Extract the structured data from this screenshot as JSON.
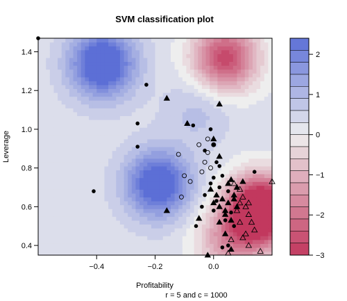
{
  "chart_data": {
    "type": "scatter",
    "title": "SVM classification plot",
    "xlabel": "Profitability",
    "ylabel": "Leverage",
    "subtitle": "r = 5  and c = 1000",
    "xlim": [
      -0.6,
      0.2
    ],
    "ylim": [
      0.35,
      1.47
    ],
    "x_ticks": [
      -0.4,
      -0.2,
      0.0
    ],
    "x_tick_labels": [
      "−0.4",
      "−0.2",
      "0.0"
    ],
    "y_ticks": [
      0.4,
      0.6,
      0.8,
      1.0,
      1.2,
      1.4
    ],
    "y_tick_labels": [
      "0.4",
      "0.6",
      "0.8",
      "1.0",
      "1.2",
      "1.4"
    ],
    "colorbar": {
      "min": -3,
      "max": 2.4,
      "ticks": [
        2,
        1,
        0,
        -1,
        -2,
        -3
      ],
      "tick_labels": [
        "2",
        "1",
        "0",
        "−1",
        "−2",
        "−3"
      ],
      "high_color": "#5c6fd6",
      "mid_color": "#eeeeee",
      "low_color": "#c2385e"
    },
    "decision_surface": {
      "bias": 0.3,
      "components": [
        {
          "x": -0.38,
          "y": 1.34,
          "amp": 2.8
        },
        {
          "x": -0.19,
          "y": 0.72,
          "amp": 2.6
        },
        {
          "x": -0.05,
          "y": 1.1,
          "amp": 0.6
        },
        {
          "x": 0.04,
          "y": 1.37,
          "amp": -3.0
        },
        {
          "x": 0.16,
          "y": 0.58,
          "amp": -5.2
        },
        {
          "x": 0.05,
          "y": 0.42,
          "amp": -1.5
        }
      ]
    },
    "series": [
      {
        "marker": "filled-circle",
        "points": [
          [
            -0.6,
            1.47
          ],
          [
            -0.23,
            1.23
          ],
          [
            -0.26,
            1.03
          ],
          [
            -0.26,
            0.91
          ],
          [
            -0.41,
            0.68
          ],
          [
            -0.07,
            1.02
          ],
          [
            -0.03,
            0.89
          ],
          [
            -0.01,
            1.0
          ],
          [
            0.0,
            0.92
          ],
          [
            0.01,
            0.83
          ],
          [
            0.0,
            0.75
          ],
          [
            -0.01,
            0.72
          ],
          [
            -0.03,
            0.66
          ],
          [
            -0.04,
            0.6
          ],
          [
            -0.06,
            0.5
          ],
          [
            0.01,
            0.63
          ],
          [
            0.02,
            0.7
          ],
          [
            0.03,
            0.76
          ],
          [
            0.05,
            0.68
          ],
          [
            0.06,
            0.57
          ],
          [
            0.04,
            0.53
          ],
          [
            0.07,
            0.5
          ],
          [
            0.03,
            0.39
          ],
          [
            0.05,
            0.4
          ],
          [
            0.14,
            0.78
          ],
          [
            0.0,
            0.58
          ],
          [
            0.02,
            0.81
          ]
        ]
      },
      {
        "marker": "filled-triangle",
        "points": [
          [
            -0.16,
            1.16
          ],
          [
            -0.09,
            1.03
          ],
          [
            0.02,
            1.13
          ],
          [
            0.0,
            0.95
          ],
          [
            0.02,
            0.86
          ],
          [
            -0.05,
            0.54
          ],
          [
            -0.02,
            0.35
          ],
          [
            0.0,
            0.62
          ],
          [
            0.01,
            0.66
          ],
          [
            0.02,
            0.6
          ],
          [
            0.03,
            0.64
          ],
          [
            0.04,
            0.58
          ],
          [
            0.05,
            0.62
          ],
          [
            0.05,
            0.72
          ],
          [
            0.07,
            0.66
          ],
          [
            0.06,
            0.74
          ],
          [
            0.02,
            0.52
          ],
          [
            0.06,
            0.53
          ],
          [
            0.08,
            0.6
          ],
          [
            0.04,
            0.46
          ],
          [
            0.06,
            0.38
          ],
          [
            0.07,
            0.64
          ],
          [
            0.1,
            0.73
          ],
          [
            0.04,
            0.56
          ],
          [
            -0.01,
            0.69
          ],
          [
            0.08,
            0.7
          ],
          [
            -0.16,
            0.58
          ]
        ]
      },
      {
        "marker": "open-circle",
        "points": [
          [
            -0.12,
            0.87
          ],
          [
            -0.1,
            0.76
          ],
          [
            -0.11,
            0.65
          ],
          [
            -0.08,
            0.73
          ],
          [
            -0.05,
            0.92
          ],
          [
            -0.03,
            0.83
          ],
          [
            -0.02,
            0.88
          ],
          [
            0.0,
            0.92
          ],
          [
            -0.04,
            0.78
          ],
          [
            -0.02,
            0.95
          ],
          [
            -0.01,
            0.8
          ]
        ]
      },
      {
        "marker": "open-triangle",
        "points": [
          [
            0.07,
            0.72
          ],
          [
            0.09,
            0.69
          ],
          [
            0.1,
            0.65
          ],
          [
            0.11,
            0.6
          ],
          [
            0.12,
            0.56
          ],
          [
            0.13,
            0.52
          ],
          [
            0.11,
            0.46
          ],
          [
            0.1,
            0.44
          ],
          [
            0.12,
            0.4
          ],
          [
            0.16,
            0.37
          ],
          [
            0.08,
            0.58
          ],
          [
            0.09,
            0.62
          ],
          [
            0.06,
            0.43
          ],
          [
            0.14,
            0.48
          ],
          [
            0.2,
            0.73
          ],
          [
            0.05,
            0.36
          ],
          [
            0.09,
            0.52
          ],
          [
            0.12,
            0.62
          ]
        ]
      }
    ]
  }
}
